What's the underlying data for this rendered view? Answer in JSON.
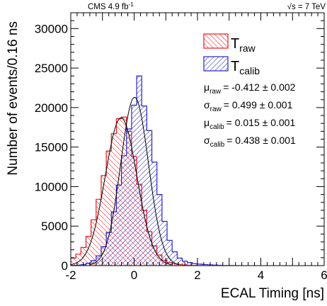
{
  "header": {
    "experiment": "CMS 4.9 fb",
    "experiment_sup": "-1",
    "energy_sqrt": "√",
    "energy_s": "s = 7 TeV"
  },
  "legend": {
    "raw_T": "T",
    "raw_sub": "raw",
    "calib_T": "T",
    "calib_sub": "calib"
  },
  "stats": [
    {
      "symbol": "μ",
      "sub": "raw",
      "text": "= -0.412 ± 0.002"
    },
    {
      "symbol": "σ",
      "sub": "raw",
      "text": "= 0.499 ± 0.001"
    },
    {
      "symbol": "μ",
      "sub": "calib",
      "text": "= 0.015 ± 0.001"
    },
    {
      "symbol": "σ",
      "sub": "calib",
      "text": "= 0.438 ± 0.001"
    }
  ],
  "colors": {
    "raw": "#e8191e",
    "calib": "#2626c8",
    "overlap": "#7a1a9a"
  },
  "chart_data": {
    "type": "bar",
    "xlabel": "ECAL Timing [ns]",
    "ylabel": "Number of events/0.16 ns",
    "xlim": [
      -2,
      6
    ],
    "ylim": [
      0,
      32000
    ],
    "xticks": [
      "-2",
      "0",
      "2",
      "4",
      "6"
    ],
    "yticks": [
      "0",
      "5000",
      "10000",
      "15000",
      "20000",
      "25000",
      "30000"
    ],
    "bin_width": 0.16,
    "series": [
      {
        "name": "T_raw",
        "bin_start": -2.0,
        "values": [
          950,
          1450,
          2300,
          3700,
          5800,
          8400,
          11400,
          14500,
          16700,
          18600,
          18800,
          17000,
          13800,
          10300,
          7000,
          4300,
          2500,
          1350,
          700,
          380,
          230,
          150,
          90,
          60,
          40,
          25,
          18,
          12,
          8,
          5
        ]
      },
      {
        "name": "T_calib",
        "bin_start": -2.0,
        "values": [
          20,
          50,
          120,
          300,
          650,
          1250,
          2400,
          4200,
          6800,
          10200,
          13900,
          17300,
          20300,
          24000,
          20200,
          17100,
          13100,
          9000,
          5600,
          3200,
          1750,
          950,
          560,
          380,
          260,
          190,
          140,
          100,
          70,
          45,
          30,
          20,
          14,
          10,
          7,
          5
        ]
      }
    ],
    "fits": [
      {
        "name": "T_raw",
        "mean": -0.412,
        "sigma": 0.499,
        "peak": 18700
      },
      {
        "name": "T_calib",
        "mean": 0.015,
        "sigma": 0.438,
        "peak": 21300
      }
    ]
  }
}
